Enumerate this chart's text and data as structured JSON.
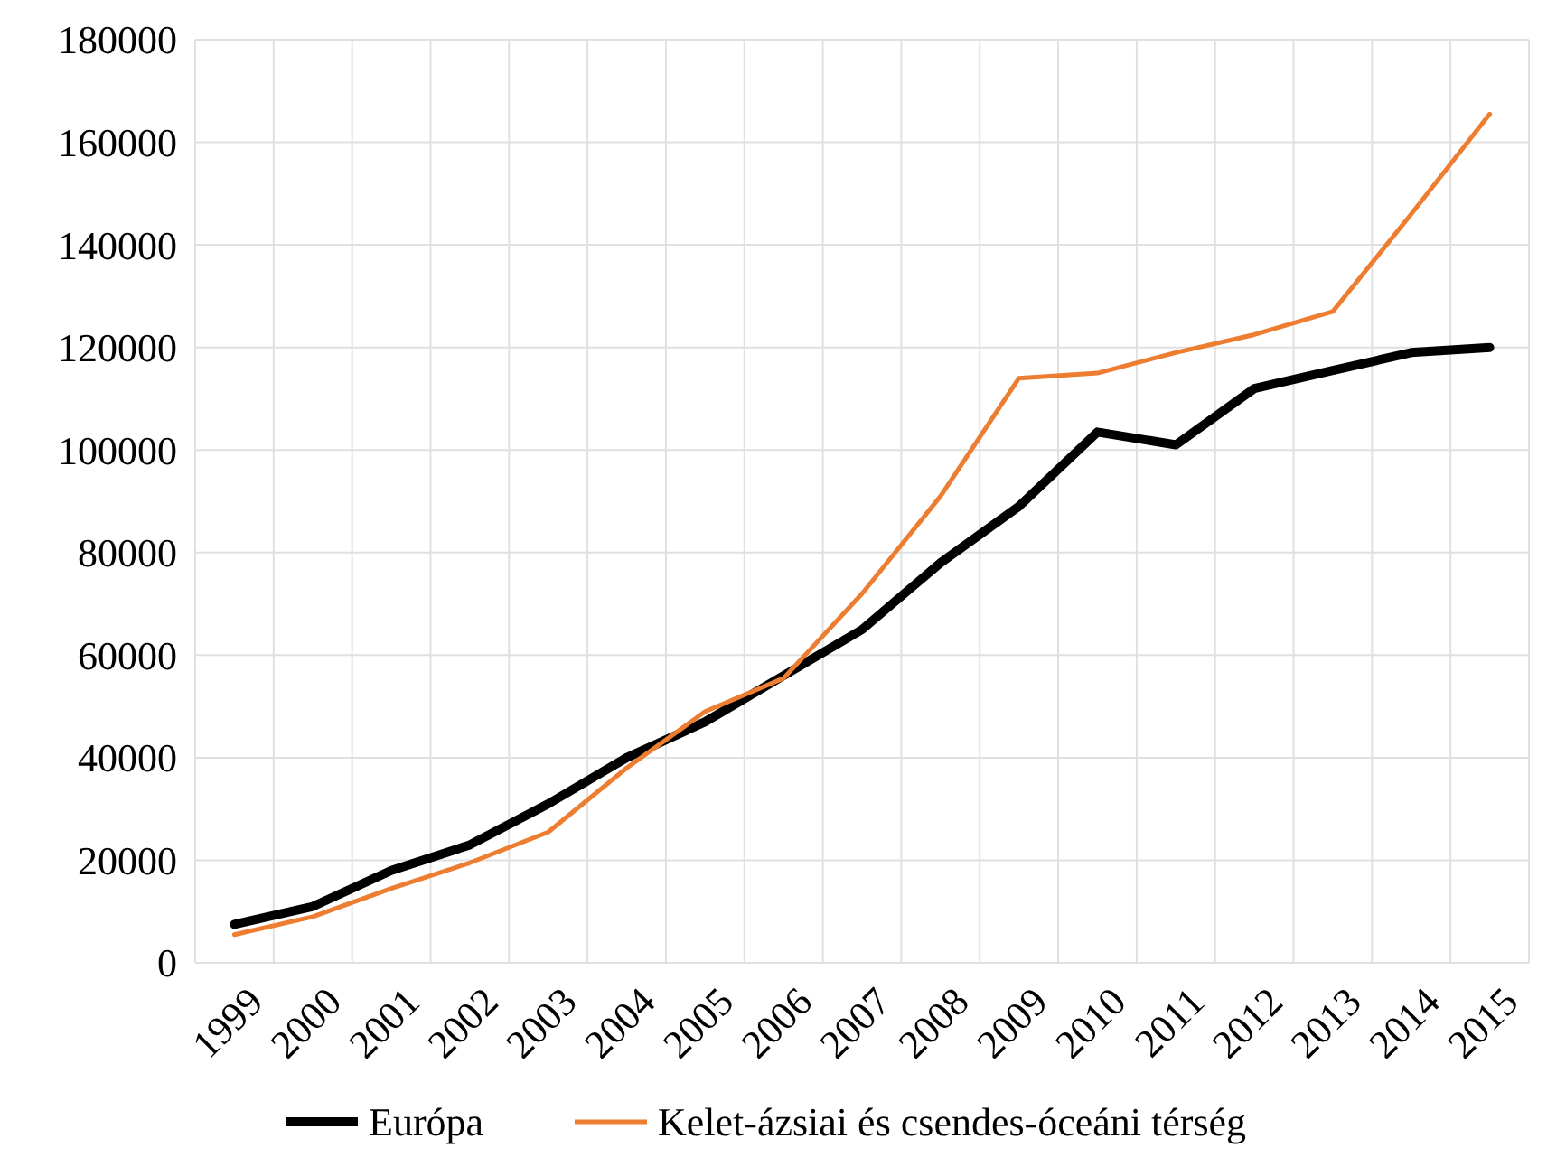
{
  "chart_data": {
    "type": "line",
    "categories": [
      "1999",
      "2000",
      "2001",
      "2002",
      "2003",
      "2004",
      "2005",
      "2006",
      "2007",
      "2008",
      "2009",
      "2010",
      "2011",
      "2012",
      "2013",
      "2014",
      "2015"
    ],
    "series": [
      {
        "name": "Európa",
        "color": "#000000",
        "values": [
          7500,
          11000,
          18000,
          23000,
          31000,
          40000,
          47000,
          56000,
          65000,
          78000,
          89000,
          103500,
          101000,
          112000,
          115500,
          119000,
          120000
        ]
      },
      {
        "name": "Kelet-ázsiai és csendes-óceáni térség",
        "color": "#ed7d31",
        "values": [
          5500,
          9000,
          14500,
          19500,
          25500,
          38000,
          49000,
          55500,
          72000,
          91000,
          114000,
          115000,
          119000,
          122500,
          127000,
          146000,
          165500
        ]
      }
    ],
    "ylim": [
      0,
      180000
    ],
    "yticks": [
      0,
      20000,
      40000,
      60000,
      80000,
      100000,
      120000,
      140000,
      160000,
      180000
    ],
    "grid": true,
    "legend": "bottom"
  }
}
